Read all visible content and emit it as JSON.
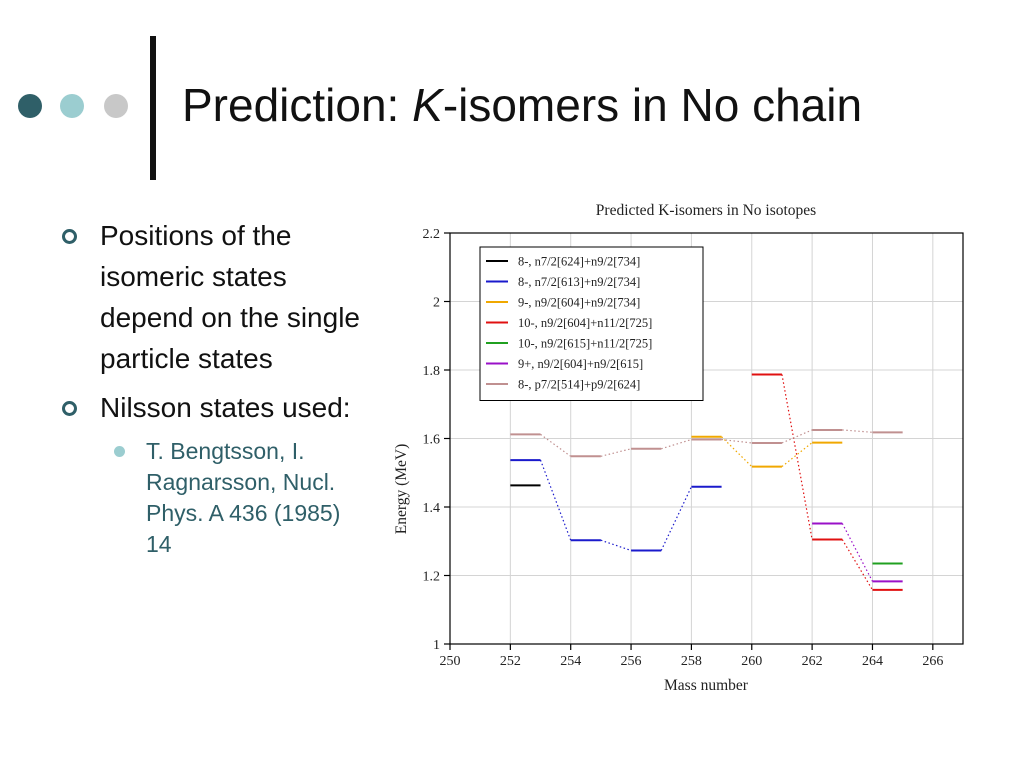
{
  "slide": {
    "title_prefix": "Prediction: ",
    "title_italic": "K",
    "title_suffix": "-isomers in No chain",
    "bullets": [
      {
        "text": "Positions of the isomeric states depend on the single particle states"
      },
      {
        "text": "Nilsson states used:"
      }
    ],
    "sub_bullets": [
      {
        "text": "T. Bengtsson, I. Ragnarsson, Nucl. Phys. A 436 (1985) 14"
      }
    ],
    "colors": {
      "dark": "#2f5f68",
      "mid": "#9bcdd0",
      "light": "#c8c8c8"
    }
  },
  "chart_data": {
    "type": "line",
    "title": "Predicted K-isomers in No isotopes",
    "xlabel": "Mass number",
    "ylabel": "Energy (MeV)",
    "xlim": [
      250,
      267
    ],
    "ylim": [
      1,
      2.2
    ],
    "xticks": [
      "250",
      "252",
      "254",
      "256",
      "258",
      "260",
      "262",
      "264",
      "266"
    ],
    "yticks": [
      "1",
      "1.2",
      "1.4",
      "1.6",
      "1.8",
      "2",
      "2.2"
    ],
    "grid": true,
    "legend_position": "top-left",
    "series": [
      {
        "name": "8-, n7/2[624]+n9/2[734]",
        "color": "#000000",
        "points": [
          [
            252,
            1.463
          ]
        ]
      },
      {
        "name": "8-, n7/2[613]+n9/2[734]",
        "color": "#1a1acc",
        "points": [
          [
            252,
            1.537
          ],
          [
            254,
            1.303
          ],
          [
            256,
            1.273
          ],
          [
            258,
            1.459
          ]
        ]
      },
      {
        "name": "9-, n9/2[604]+n9/2[734]",
        "color": "#f0a800",
        "points": [
          [
            258,
            1.605
          ],
          [
            260,
            1.518
          ],
          [
            262,
            1.588
          ]
        ]
      },
      {
        "name": "10-, n9/2[604]+n11/2[725]",
        "color": "#e01010",
        "points": [
          [
            260,
            1.787
          ],
          [
            262,
            1.305
          ],
          [
            264,
            1.158
          ]
        ]
      },
      {
        "name": "10-, n9/2[615]+n11/2[725]",
        "color": "#20a020",
        "points": [
          [
            264,
            1.235
          ]
        ]
      },
      {
        "name": "9+, n9/2[604]+n9/2[615]",
        "color": "#9a10c8",
        "points": [
          [
            262,
            1.352
          ],
          [
            264,
            1.183
          ]
        ]
      },
      {
        "name": "8-, p7/2[514]+p9/2[624]",
        "color": "#c09090",
        "points": [
          [
            252,
            1.612
          ],
          [
            254,
            1.548
          ],
          [
            256,
            1.57
          ],
          [
            258,
            1.597
          ],
          [
            260,
            1.587
          ],
          [
            262,
            1.625
          ],
          [
            264,
            1.618
          ]
        ]
      }
    ]
  }
}
